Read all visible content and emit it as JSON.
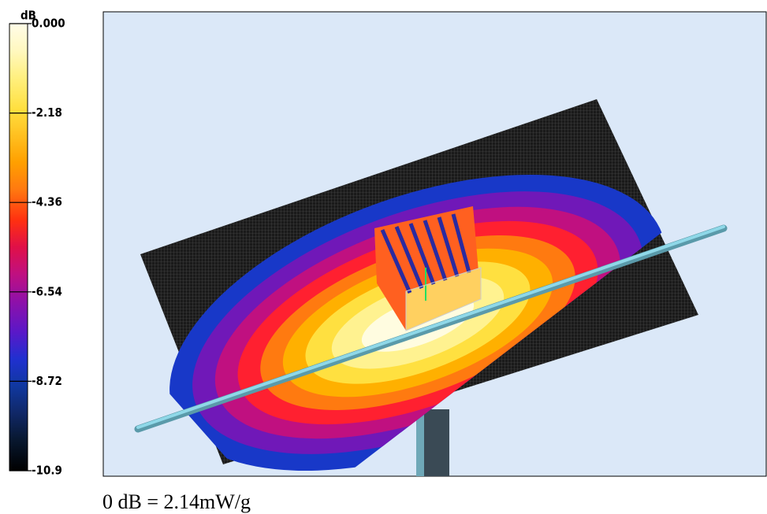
{
  "colorbar": {
    "title": "dB",
    "lim": [
      -10.9,
      0
    ],
    "ticks": [
      {
        "value": 0,
        "label": "0.000"
      },
      -2.18,
      -4.36,
      -6.54,
      -8.72,
      -10.9
    ]
  },
  "caption": "0 dB = 2.14mW/g"
}
